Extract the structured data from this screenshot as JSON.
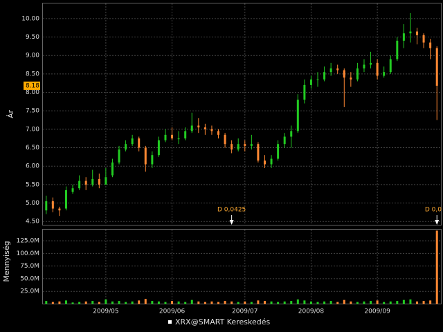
{
  "chart_data": {
    "type": "candlestick",
    "y_label": "Ár",
    "legend": "XRX@SMART Kereskedés",
    "categories": [
      null,
      null,
      null,
      null,
      null,
      null,
      null,
      null,
      null,
      "2009/05",
      null,
      null,
      null,
      null,
      null,
      null,
      null,
      null,
      null,
      "2009/06",
      null,
      null,
      null,
      null,
      null,
      null,
      null,
      null,
      null,
      null,
      "2009/07",
      null,
      null,
      null,
      null,
      null,
      null,
      null,
      null,
      null,
      "2009/08",
      null,
      null,
      null,
      null,
      null,
      null,
      null,
      null,
      null,
      "2009/09",
      null,
      null,
      null,
      null,
      null,
      null,
      null,
      null,
      null
    ],
    "open": [
      4.8,
      5.05,
      4.85,
      4.85,
      5.3,
      5.4,
      5.6,
      5.5,
      5.65,
      5.5,
      5.75,
      6.1,
      6.45,
      6.6,
      6.75,
      6.5,
      6.05,
      6.3,
      6.7,
      6.85,
      6.75,
      6.75,
      6.95,
      7.1,
      7.05,
      7.0,
      6.95,
      6.85,
      6.6,
      6.45,
      6.6,
      6.55,
      6.6,
      6.15,
      6.05,
      6.2,
      6.6,
      6.8,
      6.95,
      7.8,
      8.2,
      8.35,
      8.35,
      8.55,
      8.65,
      8.6,
      8.4,
      8.35,
      8.65,
      8.75,
      8.8,
      8.45,
      8.55,
      8.9,
      9.4,
      9.6,
      9.65,
      9.55,
      9.35,
      9.2
    ],
    "high": [
      5.2,
      5.15,
      4.9,
      5.45,
      5.5,
      5.75,
      5.7,
      5.9,
      5.8,
      5.95,
      6.2,
      6.55,
      6.7,
      6.85,
      6.8,
      6.55,
      6.4,
      6.8,
      7.0,
      7.05,
      6.95,
      7.05,
      7.45,
      7.3,
      7.15,
      7.1,
      7.0,
      6.9,
      6.7,
      6.75,
      6.7,
      6.85,
      6.65,
      6.3,
      6.3,
      6.7,
      6.9,
      7.1,
      7.95,
      8.35,
      8.45,
      8.55,
      8.7,
      8.8,
      8.75,
      8.65,
      8.55,
      8.8,
      8.9,
      9.1,
      8.9,
      8.7,
      9.0,
      9.5,
      9.85,
      10.15,
      9.75,
      9.6,
      9.45,
      9.25
    ],
    "low": [
      4.7,
      4.75,
      4.65,
      4.8,
      5.25,
      5.35,
      5.35,
      5.45,
      5.4,
      5.5,
      5.7,
      6.05,
      6.4,
      6.55,
      6.4,
      5.85,
      5.95,
      6.25,
      6.65,
      6.7,
      6.6,
      6.7,
      6.9,
      6.9,
      6.85,
      6.85,
      6.75,
      6.5,
      6.35,
      6.4,
      6.4,
      6.45,
      6.1,
      5.95,
      5.95,
      6.15,
      6.5,
      6.5,
      6.9,
      7.7,
      8.1,
      8.15,
      8.3,
      8.45,
      8.5,
      7.6,
      8.15,
      8.3,
      8.55,
      8.65,
      8.35,
      8.4,
      8.5,
      8.85,
      9.2,
      9.35,
      9.3,
      9.2,
      8.9,
      7.25
    ],
    "close": [
      5.05,
      4.85,
      4.8,
      5.35,
      5.4,
      5.6,
      5.5,
      5.65,
      5.5,
      5.7,
      6.1,
      6.45,
      6.6,
      6.75,
      6.5,
      6.05,
      6.3,
      6.7,
      6.85,
      6.75,
      6.75,
      6.95,
      7.1,
      7.05,
      7.0,
      6.95,
      6.85,
      6.6,
      6.45,
      6.6,
      6.55,
      6.6,
      6.15,
      6.05,
      6.2,
      6.6,
      6.8,
      6.95,
      7.8,
      8.2,
      8.35,
      8.35,
      8.55,
      8.65,
      8.6,
      8.4,
      8.35,
      8.65,
      8.75,
      8.8,
      8.45,
      8.55,
      8.9,
      9.4,
      9.6,
      9.65,
      9.55,
      9.35,
      9.2,
      8.18
    ],
    "up_color": "#22cc22",
    "down_color": "#ff8833",
    "ylim": [
      4.41,
      10.41
    ],
    "yticks": [
      {
        "value": 4.5,
        "label": "4.50"
      },
      {
        "value": 5,
        "label": "5.00"
      },
      {
        "value": 5.5,
        "label": "5.50"
      },
      {
        "value": 6,
        "label": "6.00"
      },
      {
        "value": 6.5,
        "label": "6.50"
      },
      {
        "value": 7,
        "label": "7.00"
      },
      {
        "value": 7.5,
        "label": "7.50"
      },
      {
        "value": 8,
        "label": "8.00"
      },
      {
        "value": 8.5,
        "label": "8.50"
      },
      {
        "value": 9,
        "label": "9.00"
      },
      {
        "value": 9.5,
        "label": "9.50"
      },
      {
        "value": 10,
        "label": "10.00"
      }
    ],
    "last_price": {
      "value": 8.18,
      "label": "8.18"
    },
    "grid": true,
    "annotations": [
      {
        "text": "D 0,0425",
        "category_index": 28
      },
      {
        "text": "D 0,0",
        "category_index": 59
      }
    ],
    "volume": {
      "y_label": "Mennyiség",
      "values": [
        6000000,
        4000000,
        5000000,
        7000000,
        3000000,
        4000000,
        5000000,
        6000000,
        4000000,
        9000000,
        5000000,
        6000000,
        4000000,
        5000000,
        7000000,
        10000000,
        6000000,
        5000000,
        4000000,
        6000000,
        5000000,
        4000000,
        8000000,
        5000000,
        4000000,
        5000000,
        4000000,
        6000000,
        5000000,
        4000000,
        5000000,
        4000000,
        7000000,
        6000000,
        5000000,
        4000000,
        5000000,
        6000000,
        9000000,
        7000000,
        5000000,
        4000000,
        5000000,
        6000000,
        4000000,
        8000000,
        5000000,
        4000000,
        5000000,
        6000000,
        7000000,
        4000000,
        5000000,
        6000000,
        8000000,
        9000000,
        5000000,
        6000000,
        7000000,
        145000000
      ],
      "ylim": [
        0,
        147000000
      ],
      "yticks": [
        {
          "value": 25000000,
          "label": "25.0M"
        },
        {
          "value": 50000000,
          "label": "50.0M"
        },
        {
          "value": 75000000,
          "label": "75.0M"
        },
        {
          "value": 100000000,
          "label": "100.0M"
        },
        {
          "value": 125000000,
          "label": "125.0M"
        }
      ]
    }
  }
}
